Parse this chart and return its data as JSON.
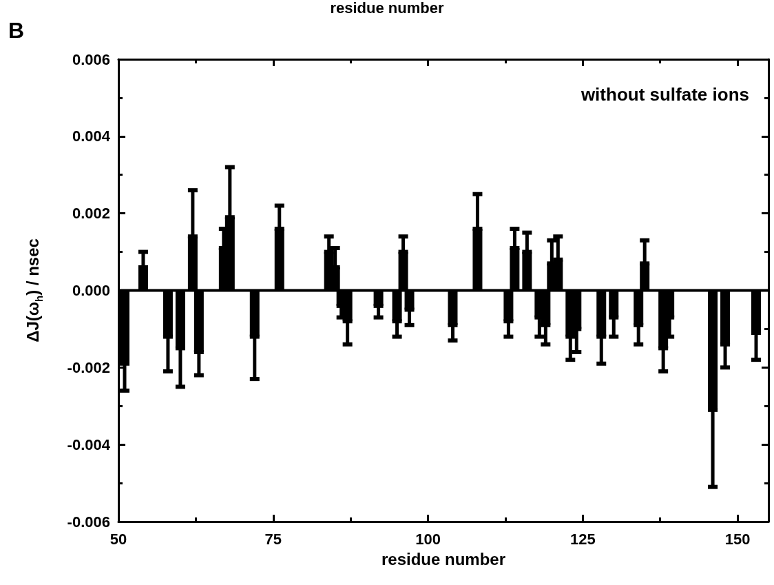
{
  "chart_data": {
    "type": "bar",
    "xlabel": "residue number",
    "ylabel": "ΔJ(ω$_{h}$) / nsec",
    "annotations": [
      "residue number",
      "B",
      "without sulfate ions"
    ],
    "x": [
      51,
      54,
      58,
      60,
      62,
      63,
      67,
      68,
      72,
      76,
      84,
      85,
      86,
      87,
      92,
      95,
      96,
      97,
      104,
      108,
      113,
      114,
      116,
      118,
      119,
      120,
      121,
      123,
      124,
      128,
      130,
      134,
      135,
      138,
      139,
      146,
      148,
      153
    ],
    "values": [
      -0.0019,
      0.0006,
      -0.0012,
      -0.0015,
      0.0014,
      -0.0016,
      0.0011,
      0.0019,
      -0.0012,
      0.0016,
      0.001,
      0.0006,
      -0.0004,
      -0.0008,
      -0.0004,
      -0.0008,
      0.001,
      -0.0005,
      -0.0009,
      0.0016,
      -0.0008,
      0.0011,
      0.001,
      -0.0007,
      -0.0009,
      0.0007,
      0.0008,
      -0.0012,
      -0.001,
      -0.0012,
      -0.0007,
      -0.0009,
      0.0007,
      -0.0015,
      -0.0007,
      -0.0031,
      -0.0014,
      -0.0011
    ],
    "errors": [
      [
        -0.0026,
        -0.0019
      ],
      [
        0.0006,
        0.001
      ],
      [
        -0.0021,
        -0.0012
      ],
      [
        -0.0025,
        -0.0015
      ],
      [
        0.0014,
        0.0026
      ],
      [
        -0.0022,
        -0.0016
      ],
      [
        0.0011,
        0.0016
      ],
      [
        0.0019,
        0.0032
      ],
      [
        -0.0023,
        -0.0012
      ],
      [
        0.0016,
        0.0022
      ],
      [
        0.001,
        0.0014
      ],
      [
        0.0006,
        0.0011
      ],
      [
        -0.0007,
        -0.0004
      ],
      [
        -0.0014,
        -0.0008
      ],
      [
        -0.0007,
        -0.0004
      ],
      [
        -0.0012,
        -0.0008
      ],
      [
        0.001,
        0.0014
      ],
      [
        -0.0009,
        -0.0005
      ],
      [
        -0.0013,
        -0.0009
      ],
      [
        0.0016,
        0.0025
      ],
      [
        -0.0012,
        -0.0008
      ],
      [
        0.0011,
        0.0016
      ],
      [
        0.001,
        0.0015
      ],
      [
        -0.0012,
        -0.0007
      ],
      [
        -0.0014,
        -0.0009
      ],
      [
        0.0007,
        0.0013
      ],
      [
        0.0008,
        0.0014
      ],
      [
        -0.0018,
        -0.0012
      ],
      [
        -0.0016,
        -0.001
      ],
      [
        -0.0019,
        -0.0012
      ],
      [
        -0.0012,
        -0.0007
      ],
      [
        -0.0014,
        -0.0009
      ],
      [
        0.0007,
        0.0013
      ],
      [
        -0.0021,
        -0.0015
      ],
      [
        -0.0012,
        -0.0007
      ],
      [
        -0.0051,
        -0.0031
      ],
      [
        -0.002,
        -0.0014
      ],
      [
        -0.0018,
        -0.0011
      ]
    ],
    "color": "#000000",
    "xlim": [
      50,
      155
    ],
    "xticks": [
      50,
      75,
      100,
      125,
      150
    ],
    "ylim": [
      -0.006,
      0.006
    ],
    "yticks": [
      {
        "value": -0.006,
        "label": "-0.006"
      },
      {
        "value": -0.004,
        "label": "-0.004"
      },
      {
        "value": -0.002,
        "label": "-0.002"
      },
      {
        "value": 0,
        "label": "0.000"
      },
      {
        "value": 0.002,
        "label": "0.002"
      },
      {
        "value": 0.004,
        "label": "0.004"
      },
      {
        "value": 0.006,
        "label": "0.006"
      }
    ],
    "ref_lines": [
      {
        "axis": "y",
        "value": 0,
        "color": "#000000"
      }
    ],
    "grid": false,
    "legend": false
  }
}
